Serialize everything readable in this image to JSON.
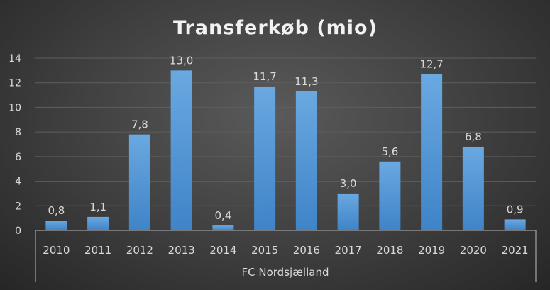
{
  "chart_data": {
    "type": "bar",
    "title": "Transferkøb (mio)",
    "categories": [
      "2010",
      "2011",
      "2012",
      "2013",
      "2014",
      "2015",
      "2016",
      "2017",
      "2018",
      "2019",
      "2020",
      "2021"
    ],
    "values": [
      0.8,
      1.1,
      7.8,
      13.0,
      0.4,
      11.7,
      11.3,
      3.0,
      5.6,
      12.7,
      6.8,
      0.9
    ],
    "data_labels": [
      "0,8",
      "1,1",
      "7,8",
      "13,0",
      "0,4",
      "11,7",
      "11,3",
      "3,0",
      "5,6",
      "12,7",
      "6,8",
      "0,9"
    ],
    "group_label": "FC Nordsjælland",
    "xlabel": "",
    "ylabel": "",
    "ylim": [
      0,
      14
    ],
    "yticks": [
      "0",
      "2",
      "4",
      "6",
      "8",
      "10",
      "12",
      "14"
    ],
    "grid": true,
    "bar_color": "#5b9bd5"
  }
}
